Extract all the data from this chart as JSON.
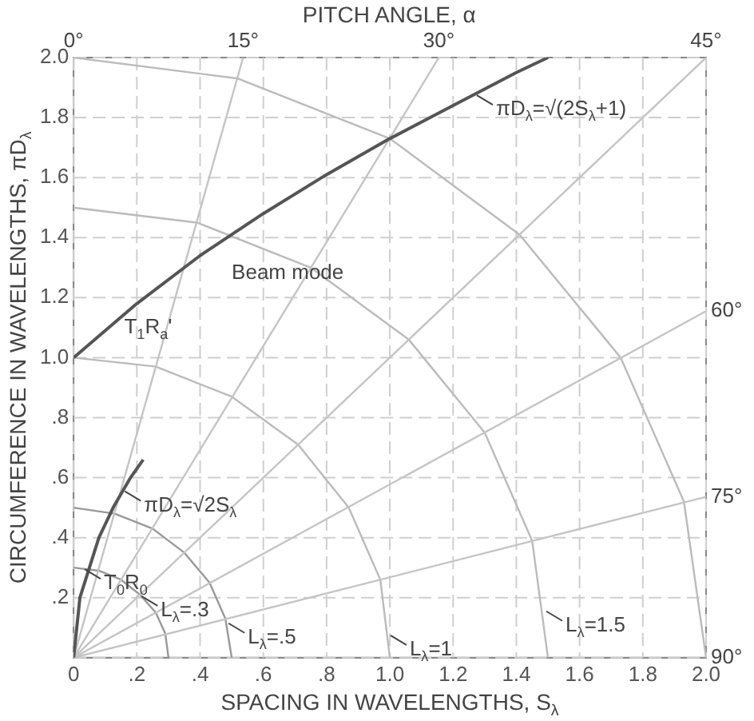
{
  "chart_data": {
    "type": "line",
    "xlabel": "SPACING IN WAVELENGTHS, S$_{λ}$",
    "ylabel": "CIRCUMFERENCE IN WAVELENGTHS, πD$_{λ}$",
    "x2label": "PITCH ANGLE, α",
    "xlim": [
      0,
      2
    ],
    "xticks": [
      0,
      {
        "value": 0.2,
        "label": ".2"
      },
      {
        "value": 0.4,
        "label": ".4"
      },
      {
        "value": 0.6,
        "label": ".6"
      },
      {
        "value": 0.8,
        "label": ".8"
      },
      {
        "value": 1,
        "label": "1.0"
      },
      {
        "value": 1.2,
        "label": "1.2"
      },
      {
        "value": 1.4,
        "label": "1.4"
      },
      {
        "value": 1.6,
        "label": "1.6"
      },
      {
        "value": 1.8,
        "label": "1.8"
      },
      {
        "value": 2,
        "label": "2.0"
      }
    ],
    "ylim": [
      0,
      2
    ],
    "yticks": [
      {
        "value": 0,
        "label": null
      },
      {
        "value": 0.2,
        "label": ".2"
      },
      {
        "value": 0.4,
        "label": ".4"
      },
      {
        "value": 0.6,
        "label": ".6"
      },
      {
        "value": 0.8,
        "label": ".8"
      },
      {
        "value": 1,
        "label": "1.0"
      },
      {
        "value": 1.2,
        "label": "1.2"
      },
      {
        "value": 1.4,
        "label": "1.4"
      },
      {
        "value": 1.6,
        "label": "1.6"
      },
      {
        "value": 1.8,
        "label": "1.8"
      },
      {
        "value": 2,
        "label": "2.0"
      }
    ],
    "grid": true,
    "line_style": "solid",
    "marker": "none",
    "series": [
      {
        "color": "#555555",
        "x": [
          0,
          0.2,
          0.4,
          0.6,
          0.8,
          1.0,
          1.2,
          1.4,
          1.5
        ],
        "values": [
          1,
          1.18,
          1.34,
          1.48,
          1.61,
          1.73,
          1.84,
          1.95,
          2.0
        ]
      },
      {
        "color": "#555555",
        "x": [
          0,
          0.02,
          0.05,
          0.08,
          0.125,
          0.18,
          0.22
        ],
        "values": [
          0,
          0.2,
          0.3,
          0.4,
          0.5,
          0.6,
          0.66
        ]
      },
      {
        "color": "#c4c4c4",
        "x": [
          0,
          0.536
        ],
        "values": [
          0,
          2
        ]
      },
      {
        "color": "#c4c4c4",
        "x": [
          0,
          1.155
        ],
        "values": [
          0,
          2
        ]
      },
      {
        "color": "#c4c4c4",
        "x": [
          0,
          2
        ],
        "values": [
          0,
          2
        ]
      },
      {
        "color": "#c4c4c4",
        "x": [
          0,
          2
        ],
        "values": [
          0,
          1.155
        ]
      },
      {
        "color": "#c4c4c4",
        "x": [
          0,
          2
        ],
        "values": [
          0,
          0.536
        ]
      },
      {
        "color": "#999999",
        "x": [
          0.3,
          0.29,
          0.26,
          0.21,
          0.15,
          0.08,
          0
        ],
        "values": [
          0,
          0.08,
          0.15,
          0.21,
          0.26,
          0.29,
          0.3
        ]
      },
      {
        "color": "#999999",
        "x": [
          0.5,
          0.48,
          0.43,
          0.35,
          0.25,
          0.13,
          0
        ],
        "values": [
          0,
          0.13,
          0.25,
          0.35,
          0.43,
          0.48,
          0.5
        ]
      },
      {
        "color": "#bbbbbb",
        "x": [
          1,
          0.97,
          0.87,
          0.71,
          0.5,
          0.26,
          0
        ],
        "values": [
          0,
          0.26,
          0.5,
          0.71,
          0.87,
          0.97,
          1
        ]
      },
      {
        "color": "#bbbbbb",
        "x": [
          1.5,
          1.45,
          1.3,
          1.06,
          0.75,
          0.39,
          0
        ],
        "values": [
          0,
          0.39,
          0.75,
          1.06,
          1.3,
          1.45,
          1.5
        ]
      },
      {
        "color": "#bbbbbb",
        "x": [
          2,
          1.93,
          1.73,
          1.41,
          1.0,
          0.52,
          0
        ],
        "values": [
          0,
          0.52,
          1.0,
          1.41,
          1.73,
          1.93,
          2
        ]
      }
    ],
    "annotations": [
      {
        "text": "πD$_{λ}$=√(2S$_{λ}$+1)",
        "x": 1.27,
        "y": 1.88
      },
      {
        "text": "πD$_{λ}$=√2S$_{λ}$",
        "x": 0.157,
        "y": 0.56
      },
      {
        "text": "L$_{λ}$=.3",
        "x": 0.21,
        "y": 0.21
      },
      {
        "text": "L$_{λ}$=.5",
        "x": 0.485,
        "y": 0.12
      },
      {
        "text": "L$_{λ}$=1",
        "x": 0.997,
        "y": 0.08
      },
      {
        "text": "L$_{λ}$=1.5",
        "x": 1.49,
        "y": 0.16
      },
      "Beam mode",
      "T$_{1}$R$_{a}$'",
      {
        "text": "T$_{0}$R$_{0}$",
        "x": 0.03,
        "y": 0.3
      },
      {
        "text": "0°",
        "x": 0,
        "y": 2
      },
      {
        "text": "15°",
        "x": 0.536,
        "y": 2
      },
      {
        "text": "30°",
        "x": 1.155,
        "y": 2
      },
      {
        "text": "45°",
        "x": 2,
        "y": 2
      },
      {
        "text": "60°",
        "x": 2,
        "y": 1.155
      },
      {
        "text": "75°",
        "x": 2,
        "y": 0.536
      },
      {
        "text": "90°",
        "x": 2,
        "y": 0
      }
    ]
  }
}
